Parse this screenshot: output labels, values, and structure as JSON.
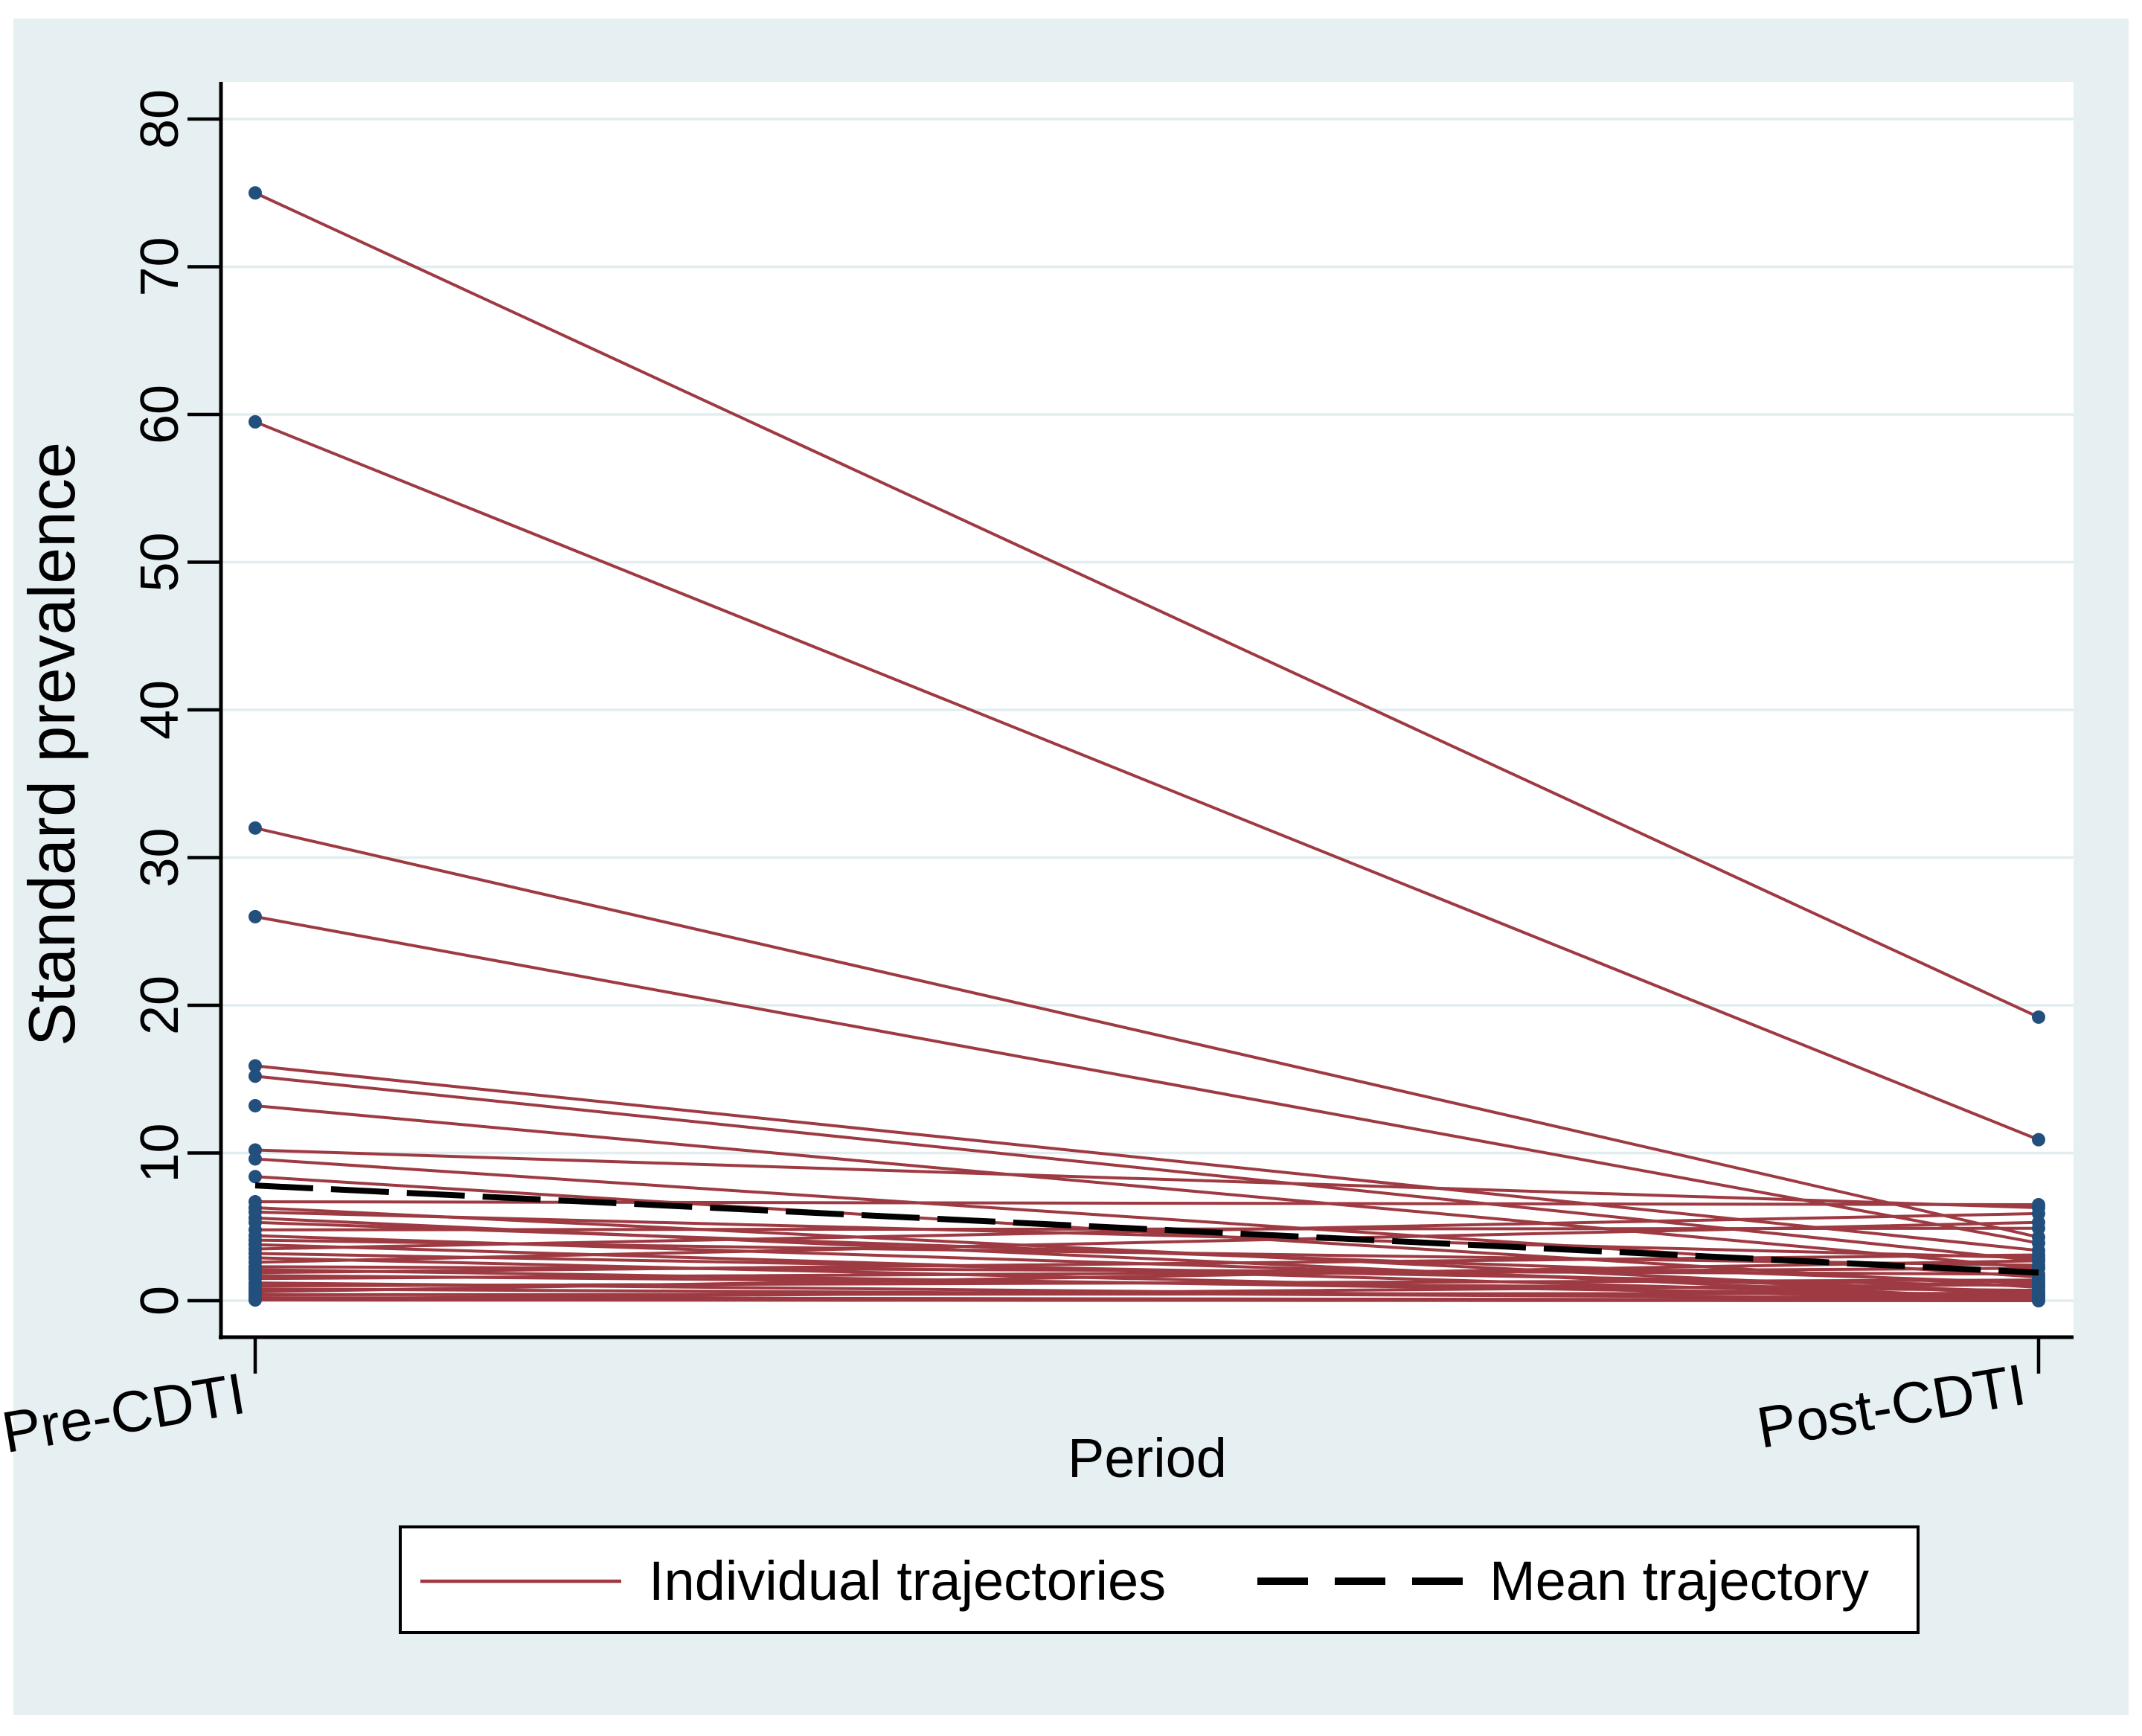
{
  "figure": {
    "canvas_color": "#e6eff1",
    "plot_background": "#ffffff",
    "gridline_color": "#e2edf0",
    "axis_color": "#000000",
    "trajectory_color": "#9e3a42",
    "marker_color": "#234f7c",
    "mean_color": "#000000"
  },
  "chart_data": {
    "type": "line",
    "title": "",
    "xlabel": "Period",
    "ylabel": "Standard prevalence",
    "categories": [
      "Pre-CDTI",
      "Post-CDTI"
    ],
    "y_ticks": [
      0,
      10,
      20,
      30,
      40,
      50,
      60,
      70,
      80
    ],
    "ylim": [
      0,
      83
    ],
    "grid": true,
    "legend": {
      "position": "bottom",
      "entries": [
        "Individual trajectories",
        "Mean trajectory"
      ]
    },
    "series": [
      {
        "name": "Individual trajectories",
        "style": "solid",
        "trajectories": [
          [
            75,
            19.2
          ],
          [
            59.5,
            10.9
          ],
          [
            32,
            4.3
          ],
          [
            26,
            3.9
          ],
          [
            15.9,
            3.4
          ],
          [
            15.2,
            2.7
          ],
          [
            13.2,
            2.2
          ],
          [
            10.2,
            6.3
          ],
          [
            9.6,
            1.6
          ],
          [
            8.4,
            0.9
          ],
          [
            6.7,
            6.5
          ],
          [
            6.3,
            0.4
          ],
          [
            6.0,
            2.9
          ],
          [
            5.6,
            0.1
          ],
          [
            5.3,
            1.2
          ],
          [
            4.8,
            4.9
          ],
          [
            4.4,
            0.6
          ],
          [
            4.1,
            2.4
          ],
          [
            3.8,
            0.2
          ],
          [
            3.5,
            5.9
          ],
          [
            3.2,
            1.0
          ],
          [
            2.9,
            0.05
          ],
          [
            2.6,
            5.3
          ],
          [
            2.3,
            1.8
          ],
          [
            2.1,
            0.3
          ],
          [
            1.9,
            3.1
          ],
          [
            1.7,
            0.7
          ],
          [
            1.5,
            2.2
          ],
          [
            1.2,
            0.05
          ],
          [
            1.0,
            1.4
          ],
          [
            0.8,
            0.15
          ],
          [
            0.6,
            2.7
          ],
          [
            0.4,
            0.5
          ],
          [
            0.2,
            0.05
          ],
          [
            0.1,
            1.1
          ],
          [
            0.05,
            0
          ]
        ]
      },
      {
        "name": "Mean trajectory",
        "style": "dashed",
        "values": [
          7.8,
          1.9
        ]
      }
    ]
  }
}
